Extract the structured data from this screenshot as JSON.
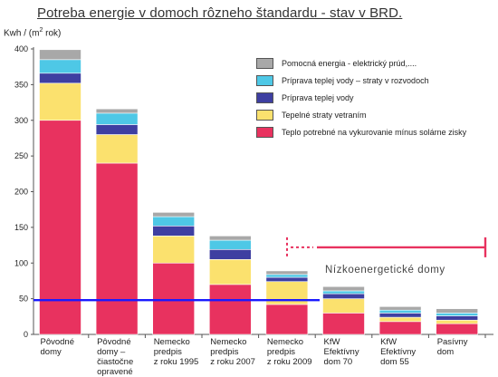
{
  "chart_data": {
    "type": "bar",
    "stacked": true,
    "title": "Potreba energie v domoch rôzneho štandardu -  stav v BRD.",
    "ylabel_prefix": "Kwh / (m",
    "ylabel_sup": "2",
    "ylabel_suffix": " rok)",
    "ylim": [
      0,
      400
    ],
    "yticks": [
      "0",
      "50",
      "100",
      "150",
      "200",
      "250",
      "300",
      "350",
      "400"
    ],
    "categories": [
      [
        "Pôvodné",
        "domy"
      ],
      [
        "Pôvodné",
        "domy –",
        "čiastočne",
        "opravené"
      ],
      [
        "Nemecko",
        "predpis",
        "z roku 1995"
      ],
      [
        "Nemecko",
        "predpis",
        "z roku 2007"
      ],
      [
        "Nemecko",
        "predpis",
        "z roku 2009"
      ],
      [
        "KfW",
        "Efektívny",
        "dom 70"
      ],
      [
        "KfW",
        "Efektívny",
        "dom 55"
      ],
      [
        "Pasívny",
        "dom"
      ]
    ],
    "series": [
      {
        "name": "Teplo potrebné na vykurovanie mínus solárne zisky",
        "color": "#e8325f",
        "values": [
          300,
          240,
          100,
          70,
          42,
          30,
          18,
          15
        ]
      },
      {
        "name": "Tepelné straty vetraním",
        "color": "#fbe16e",
        "values": [
          52,
          40,
          38,
          35,
          32,
          20,
          6,
          5
        ]
      },
      {
        "name": "Príprava teplej vody",
        "color": "#3e3fa1",
        "values": [
          14,
          14,
          14,
          14,
          6,
          7,
          6,
          6
        ]
      },
      {
        "name": "Príprava teplej vody – straty v rozvodoch",
        "color": "#4ec8e6",
        "values": [
          19,
          16,
          13,
          13,
          4,
          4,
          4,
          4
        ]
      },
      {
        "name": "Pomocná energia  - elektrický prúd,....",
        "color": "#a8a8a8",
        "values": [
          14,
          6,
          6,
          6,
          5,
          6,
          5,
          6
        ]
      }
    ],
    "legend_order": [
      4,
      3,
      2,
      1,
      0
    ],
    "reference_line": {
      "value": 48,
      "color": "#1a1aff"
    },
    "annotation": {
      "text": "Nízkoenergetické  domy",
      "color": "#e8325f",
      "value": 103,
      "from_category": 4,
      "to_category": 7
    }
  }
}
